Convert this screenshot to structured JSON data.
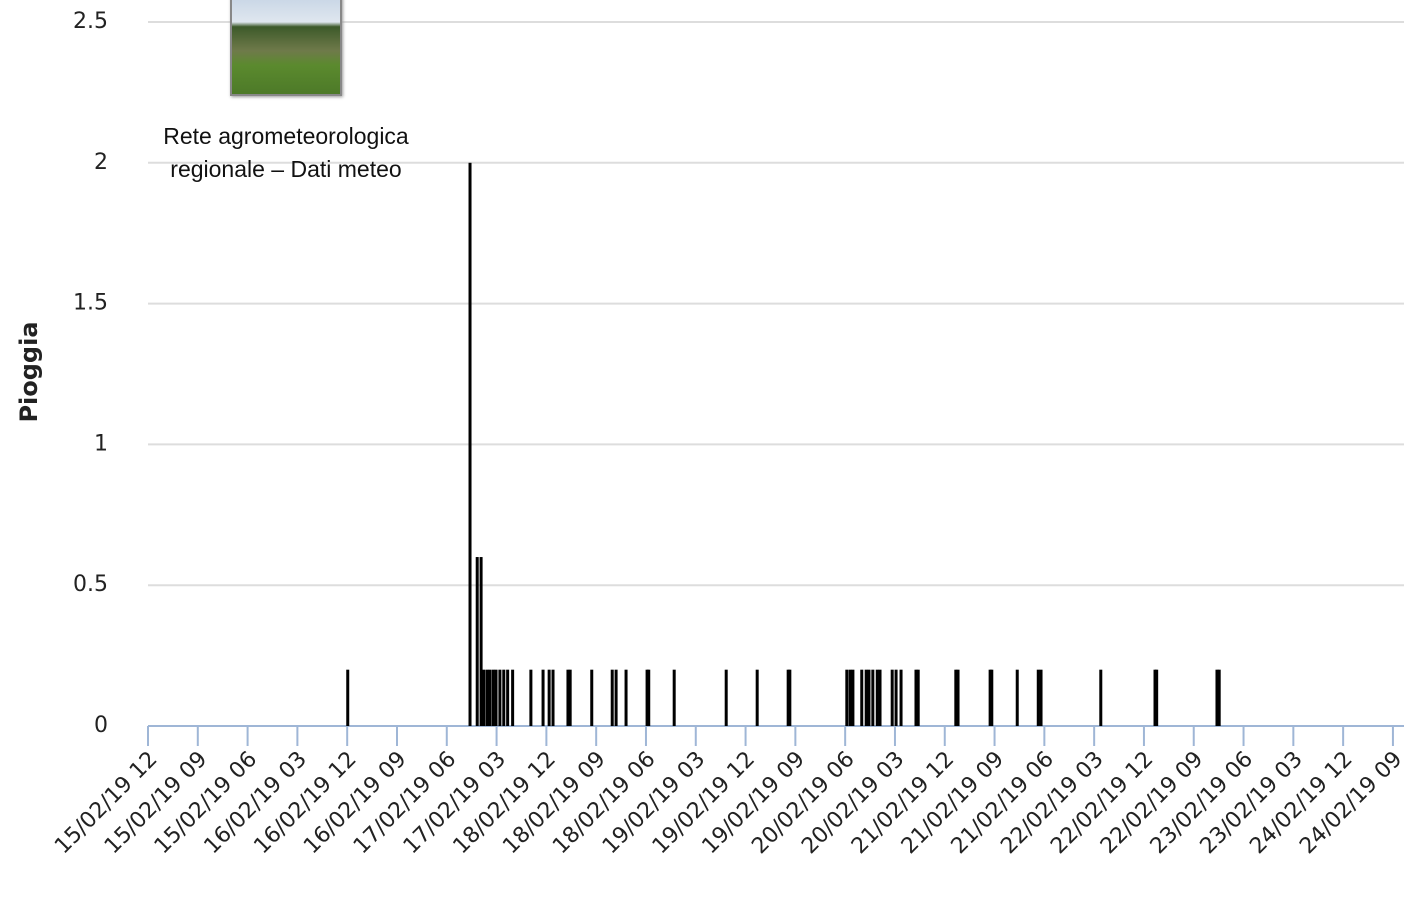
{
  "chart_data": {
    "type": "bar",
    "y_label": "Pioggia",
    "annotation": "Rete agrometeorologica regionale – Dati meteo",
    "color": "#000000",
    "grid": true,
    "ylim": [
      0,
      2.5
    ],
    "yticks": [
      0,
      0.5,
      1,
      1.5,
      2,
      2.5
    ],
    "xlim": [
      0,
      227
    ],
    "xticks": [
      {
        "value": 0,
        "label": "15/02/19 12"
      },
      {
        "value": 9,
        "label": "15/02/19 09"
      },
      {
        "value": 18,
        "label": "15/02/19 06"
      },
      {
        "value": 27,
        "label": "16/02/19 03"
      },
      {
        "value": 36,
        "label": "16/02/19 12"
      },
      {
        "value": 45,
        "label": "16/02/19 09"
      },
      {
        "value": 54,
        "label": "17/02/19 06"
      },
      {
        "value": 63,
        "label": "17/02/19 03"
      },
      {
        "value": 72,
        "label": "18/02/19 12"
      },
      {
        "value": 81,
        "label": "18/02/19 09"
      },
      {
        "value": 90,
        "label": "18/02/19 06"
      },
      {
        "value": 99,
        "label": "19/02/19 03"
      },
      {
        "value": 108,
        "label": "19/02/19 12"
      },
      {
        "value": 117,
        "label": "19/02/19 09"
      },
      {
        "value": 126,
        "label": "20/02/19 06"
      },
      {
        "value": 135,
        "label": "20/02/19 03"
      },
      {
        "value": 144,
        "label": "21/02/19 12"
      },
      {
        "value": 153,
        "label": "21/02/19 09"
      },
      {
        "value": 162,
        "label": "21/02/19 06"
      },
      {
        "value": 171,
        "label": "22/02/19 03"
      },
      {
        "value": 180,
        "label": "22/02/19 12"
      },
      {
        "value": 189,
        "label": "22/02/19 09"
      },
      {
        "value": 198,
        "label": "23/02/19 06"
      },
      {
        "value": 207,
        "label": "23/02/19 03"
      },
      {
        "value": 216,
        "label": "24/02/19 12"
      },
      {
        "value": 225,
        "label": "24/02/19 09"
      }
    ],
    "x": [
      36.1,
      58.2,
      59.5,
      60.2,
      60.7,
      61.3,
      61.8,
      62.4,
      62.9,
      63.6,
      64.3,
      65.0,
      65.9,
      69.2,
      71.4,
      72.5,
      73.2,
      75.9,
      76.3,
      80.2,
      83.9,
      84.6,
      86.4,
      90.2,
      90.5,
      95.1,
      104.5,
      110.1,
      115.7,
      116.0,
      126.3,
      126.9,
      127.4,
      129.0,
      129.8,
      130.3,
      131.0,
      131.8,
      132.3,
      134.5,
      135.2,
      136.1,
      138.8,
      139.2,
      146.0,
      146.4,
      152.2,
      152.5,
      157.1,
      160.9,
      161.4,
      172.2,
      182.0,
      182.3,
      193.2,
      193.6
    ],
    "values": [
      0.2,
      2,
      0.6,
      0.6,
      0.2,
      0.2,
      0.2,
      0.2,
      0.2,
      0.2,
      0.2,
      0.2,
      0.2,
      0.2,
      0.2,
      0.2,
      0.2,
      0.2,
      0.2,
      0.2,
      0.2,
      0.2,
      0.2,
      0.2,
      0.2,
      0.2,
      0.2,
      0.2,
      0.2,
      0.2,
      0.2,
      0.2,
      0.2,
      0.2,
      0.2,
      0.2,
      0.2,
      0.2,
      0.2,
      0.2,
      0.2,
      0.2,
      0.2,
      0.2,
      0.2,
      0.2,
      0.2,
      0.2,
      0.2,
      0.2,
      0.2,
      0.2,
      0.2,
      0.2,
      0.2,
      0.2
    ]
  }
}
